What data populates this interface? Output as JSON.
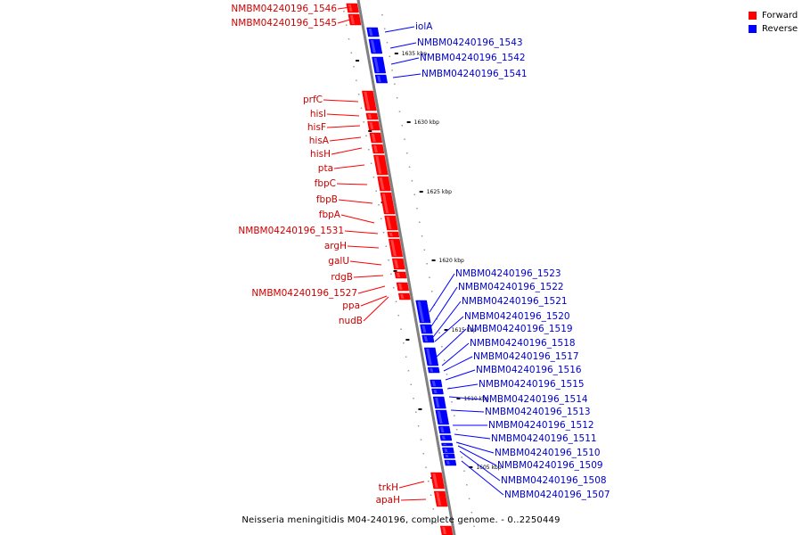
{
  "colors": {
    "forward": "#ff0000",
    "reverse": "#0000ff",
    "forward_text": "#cc0000",
    "reverse_text": "#0000cc",
    "backbone": "#808080"
  },
  "legend": {
    "forward_label": "Forward",
    "reverse_label": "Reverse"
  },
  "caption": {
    "title": "Neisseria meningitidis M04-240196, complete genome.",
    "range": " - 0..2250449"
  },
  "ticks": [
    "1635 kbp",
    "1630 kbp",
    "1625 kbp",
    "1620 kbp",
    "1615 kbp",
    "1610 kbp",
    "1605 kbp"
  ],
  "forward_genes": [
    "NMBM04240196_1546",
    "NMBM04240196_1545",
    "prfC",
    "hisI",
    "hisF",
    "hisA",
    "hisH",
    "pta",
    "fbpC",
    "fbpB",
    "fbpA",
    "NMBM04240196_1531",
    "argH",
    "galU",
    "rdgB",
    "NMBM04240196_1527",
    "ppa",
    "nudB",
    "trkH",
    "apaH"
  ],
  "reverse_genes": [
    "iolA",
    "NMBM04240196_1543",
    "NMBM04240196_1542",
    "NMBM04240196_1541",
    "NMBM04240196_1523",
    "NMBM04240196_1522",
    "NMBM04240196_1521",
    "NMBM04240196_1520",
    "NMBM04240196_1519",
    "NMBM04240196_1518",
    "NMBM04240196_1517",
    "NMBM04240196_1516",
    "NMBM04240196_1515",
    "NMBM04240196_1514",
    "NMBM04240196_1513",
    "NMBM04240196_1512",
    "NMBM04240196_1511",
    "NMBM04240196_1510",
    "NMBM04240196_1509",
    "NMBM04240196_1508",
    "NMBM04240196_1507"
  ]
}
